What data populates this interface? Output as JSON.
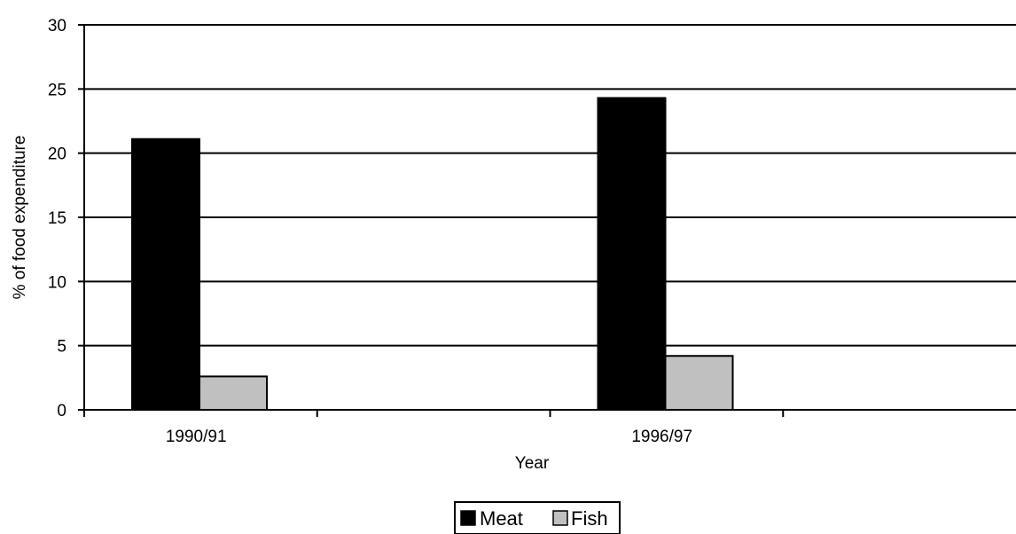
{
  "chart_data": {
    "type": "bar",
    "categories": [
      "1990/91",
      "1996/97"
    ],
    "series": [
      {
        "name": "Meat",
        "values": [
          21.1,
          24.3
        ],
        "color": "#000000"
      },
      {
        "name": "Fish",
        "values": [
          2.6,
          4.2
        ],
        "color": "#c0c0c0"
      }
    ],
    "xlabel": "Year",
    "ylabel": "% of food expenditure",
    "ylim": [
      0,
      30
    ],
    "yticks": [
      0,
      5,
      10,
      15,
      20,
      25,
      30
    ],
    "grid": true,
    "legend_position": "bottom-center"
  }
}
